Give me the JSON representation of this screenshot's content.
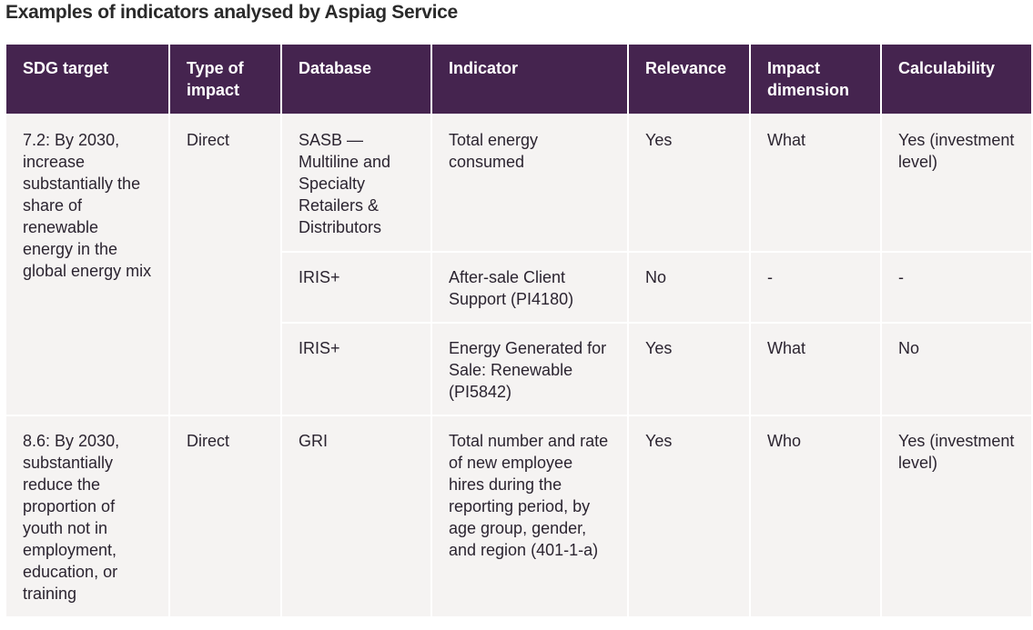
{
  "title": "Examples of indicators analysed by Aspiag Service",
  "colors": {
    "header_bg": "#45244f",
    "header_text": "#ffffff",
    "cell_bg": "#f5f3f2",
    "cell_text": "#2b2430",
    "border": "#ffffff"
  },
  "table": {
    "headers": [
      "SDG target",
      "Type of impact",
      "Database",
      "Indicator",
      "Relevance",
      "Impact dimension",
      "Calculability"
    ],
    "groups": [
      {
        "sdg_target": "7.2: By 2030, increase substantially the share of renewable energy in the global energy mix",
        "type_of_impact": "Direct",
        "rows": [
          {
            "database": "SASB — Multiline and Specialty Retailers & Distributors",
            "indicator": "Total energy consumed",
            "relevance": "Yes",
            "impact_dimension": "What",
            "calculability": "Yes (investment level)"
          },
          {
            "database": "IRIS+",
            "indicator": "After-sale Client Support (PI4180)",
            "relevance": "No",
            "impact_dimension": "-",
            "calculability": "-"
          },
          {
            "database": "IRIS+",
            "indicator": "Energy Generated for Sale: Renewable (PI5842)",
            "relevance": "Yes",
            "impact_dimension": "What",
            "calculability": "No"
          }
        ]
      },
      {
        "sdg_target": "8.6: By 2030, substantially reduce the proportion of youth not in employment, education, or training",
        "type_of_impact": "Direct",
        "rows": [
          {
            "database": "GRI",
            "indicator": "Total number and rate of new employee hires during the reporting period, by age group, gender, and region (401-1-a)",
            "relevance": "Yes",
            "impact_dimension": "Who",
            "calculability": "Yes (investment level)"
          }
        ]
      }
    ]
  }
}
